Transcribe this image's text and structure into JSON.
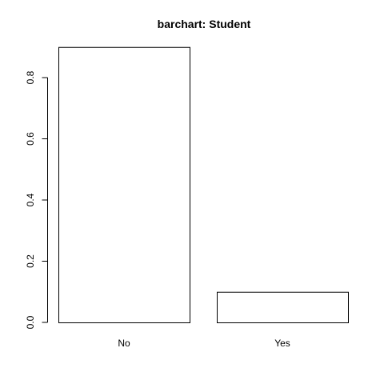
{
  "chart_data": {
    "type": "bar",
    "title": "barchart: Student",
    "categories": [
      "No",
      "Yes"
    ],
    "values": [
      0.9,
      0.1
    ],
    "xlabel": "",
    "ylabel": "",
    "ylim": [
      0,
      0.9
    ],
    "yticks": [
      0.0,
      0.2,
      0.4,
      0.6,
      0.8
    ],
    "ytick_labels": [
      "0.0",
      "0.2",
      "0.4",
      "0.6",
      "0.8"
    ],
    "bar_fill": "#ffffff",
    "bar_stroke": "#000000",
    "grid": false,
    "legend": "none"
  }
}
